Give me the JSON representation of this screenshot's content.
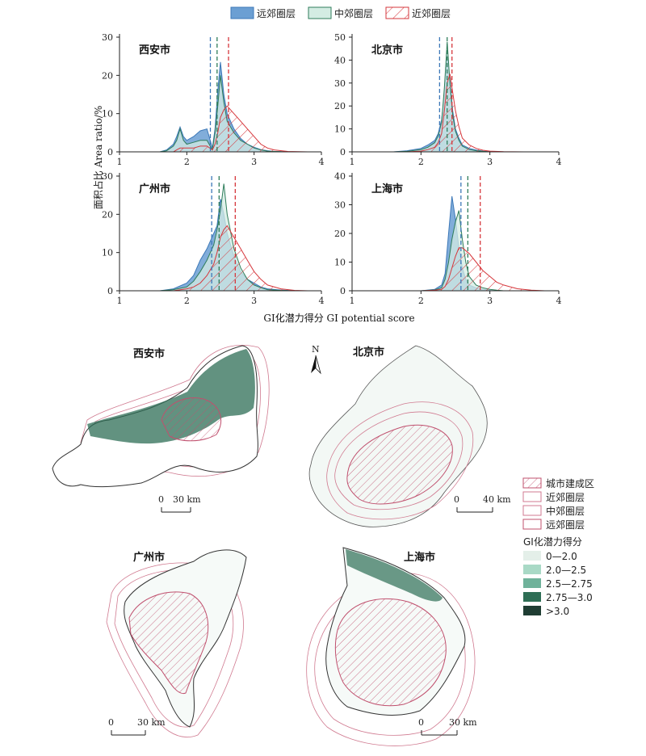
{
  "legend_top": [
    {
      "key": "outer",
      "label": "远郊圈层"
    },
    {
      "key": "middle",
      "label": "中郊圈层"
    },
    {
      "key": "near",
      "label": "近郊圈层"
    }
  ],
  "colors": {
    "outer_fill": "#6b9fd3",
    "outer_line": "#3d78b8",
    "middle_fill": "#d4ece3",
    "middle_line": "#2f7d5b",
    "near_line": "#d6373c",
    "class_0": "#e4efe9",
    "class_1": "#a9d9c6",
    "class_2": "#6fb29a",
    "class_3": "#2e6e55",
    "class_4": "#1f3d33",
    "built_hatch": "#c0506e",
    "ring_line": "#d07a90",
    "boundary": "#333333"
  },
  "axis": {
    "ylabel": "面积占比 Area ratio/%",
    "xlabel": "GI化潜力得分  GI potential score"
  },
  "chart_data": [
    {
      "type": "area",
      "title": "西安市",
      "x": [
        1.6,
        1.7,
        1.8,
        1.85,
        1.9,
        1.95,
        2.0,
        2.1,
        2.2,
        2.3,
        2.38,
        2.42,
        2.46,
        2.5,
        2.55,
        2.6,
        2.7,
        2.8,
        2.9,
        3.0,
        3.1,
        3.2,
        3.3,
        3.5,
        3.8
      ],
      "xlim": [
        1,
        4
      ],
      "ylim": [
        0,
        30
      ],
      "xticks": [
        1,
        2,
        3,
        4
      ],
      "yticks": [
        0,
        10,
        20,
        30
      ],
      "series": [
        {
          "name": "远郊圈层",
          "values": [
            0,
            0.5,
            2,
            4,
            6.5,
            4,
            3,
            4,
            5.5,
            6,
            1,
            6,
            16,
            23.5,
            15,
            10,
            6,
            3.5,
            2,
            1.2,
            0.6,
            0.3,
            0.1,
            0,
            0
          ]
        },
        {
          "name": "中郊圈层",
          "values": [
            0,
            0.3,
            1.5,
            3,
            6,
            3,
            2,
            2.5,
            3,
            3,
            0.5,
            5,
            12,
            20,
            13,
            8,
            5,
            3,
            2,
            1,
            0.5,
            0.2,
            0.1,
            0,
            0
          ]
        },
        {
          "name": "近郊圈层",
          "values": [
            0,
            0,
            0,
            0.5,
            1,
            1,
            1,
            1,
            1.5,
            1.5,
            0.5,
            2,
            5,
            9,
            11,
            12,
            10,
            8,
            6,
            4,
            2,
            1,
            0.5,
            0.1,
            0
          ]
        }
      ],
      "means": [
        2.35,
        2.45,
        2.62
      ]
    },
    {
      "type": "area",
      "title": "北京市",
      "x": [
        1.6,
        1.8,
        2.0,
        2.1,
        2.2,
        2.25,
        2.3,
        2.34,
        2.38,
        2.42,
        2.46,
        2.5,
        2.55,
        2.6,
        2.7,
        2.8,
        2.9,
        3.0,
        3.2,
        3.5,
        3.8
      ],
      "xlim": [
        1,
        4
      ],
      "ylim": [
        0,
        50
      ],
      "xticks": [
        1,
        2,
        3,
        4
      ],
      "yticks": [
        0,
        10,
        20,
        30,
        40,
        50
      ],
      "series": [
        {
          "name": "远郊圈层",
          "values": [
            0,
            0.5,
            1.5,
            3,
            5,
            8,
            14,
            25,
            42,
            31,
            18,
            10,
            6,
            3,
            1.5,
            0.8,
            0.3,
            0.1,
            0,
            0,
            0
          ]
        },
        {
          "name": "中郊圈层",
          "values": [
            0,
            0.2,
            1,
            2,
            4,
            7,
            13,
            28,
            48,
            30,
            16,
            9,
            5,
            2.5,
            1,
            0.5,
            0.2,
            0,
            0,
            0,
            0
          ]
        },
        {
          "name": "近郊圈层",
          "values": [
            0,
            0,
            0.3,
            1,
            2,
            4,
            8,
            18,
            30,
            34,
            26,
            18,
            11,
            6,
            3,
            1.5,
            0.7,
            0.3,
            0.1,
            0,
            0
          ]
        }
      ],
      "means": [
        2.27,
        2.38,
        2.45
      ]
    },
    {
      "type": "area",
      "title": "广州市",
      "x": [
        1.6,
        1.8,
        2.0,
        2.1,
        2.2,
        2.3,
        2.4,
        2.45,
        2.5,
        2.55,
        2.6,
        2.7,
        2.8,
        2.9,
        3.0,
        3.1,
        3.2,
        3.4,
        3.6,
        3.8
      ],
      "xlim": [
        1,
        4
      ],
      "ylim": [
        0,
        30
      ],
      "xticks": [
        1,
        2,
        3,
        4
      ],
      "yticks": [
        0,
        10,
        20,
        30
      ],
      "series": [
        {
          "name": "远郊圈层",
          "values": [
            0,
            0.5,
            2,
            4,
            8,
            11,
            15,
            17,
            24,
            20,
            15,
            9,
            5,
            3,
            2,
            1,
            0.5,
            0.2,
            0,
            0
          ]
        },
        {
          "name": "中郊圈层",
          "values": [
            0,
            0.3,
            1,
            2.5,
            5,
            8,
            12,
            16,
            21,
            28,
            20,
            11,
            6,
            3,
            1.5,
            0.8,
            0.3,
            0.1,
            0,
            0
          ]
        },
        {
          "name": "近郊圈层",
          "values": [
            0,
            0,
            0.5,
            1,
            2,
            4,
            7,
            10,
            14,
            16,
            17,
            14,
            11,
            8,
            5,
            3,
            1.5,
            0.5,
            0.1,
            0
          ]
        }
      ],
      "means": [
        2.37,
        2.48,
        2.72
      ]
    },
    {
      "type": "area",
      "title": "上海市",
      "x": [
        2.0,
        2.2,
        2.3,
        2.35,
        2.4,
        2.45,
        2.5,
        2.55,
        2.6,
        2.65,
        2.7,
        2.8,
        2.9,
        3.0,
        3.1,
        3.2,
        3.4,
        3.6,
        3.8
      ],
      "xlim": [
        1,
        4
      ],
      "ylim": [
        0,
        40
      ],
      "xticks": [
        1,
        2,
        3,
        4
      ],
      "yticks": [
        0,
        10,
        20,
        30,
        40
      ],
      "series": [
        {
          "name": "远郊圈层",
          "values": [
            0,
            0.5,
            2,
            6,
            20,
            33,
            25,
            15,
            8,
            4,
            2,
            1,
            0.5,
            0.2,
            0,
            0,
            0,
            0,
            0
          ]
        },
        {
          "name": "中郊圈层",
          "values": [
            0,
            0.3,
            1,
            4,
            10,
            18,
            24,
            28,
            18,
            10,
            5,
            2,
            1,
            0.5,
            0.2,
            0,
            0,
            0,
            0
          ]
        },
        {
          "name": "近郊圈层",
          "values": [
            0,
            0.2,
            0.5,
            1.5,
            4,
            8,
            12,
            15,
            15,
            14,
            13,
            10,
            7,
            5,
            3,
            2,
            0.7,
            0.2,
            0
          ]
        }
      ],
      "means": [
        2.58,
        2.68,
        2.86
      ]
    }
  ],
  "maps": [
    {
      "title": "西安市",
      "scale": "30 km"
    },
    {
      "title": "北京市",
      "scale": "40 km"
    },
    {
      "title": "广州市",
      "scale": "30 km"
    },
    {
      "title": "上海市",
      "scale": "30 km"
    }
  ],
  "scale_zero": "0",
  "north": "N",
  "map_legend": {
    "zones": [
      {
        "key": "built",
        "label": "城市建成区"
      },
      {
        "key": "near",
        "label": "近郊圈层"
      },
      {
        "key": "middle",
        "label": "中郊圈层"
      },
      {
        "key": "outer",
        "label": "远郊圈层"
      }
    ],
    "score_title": "GI化潜力得分",
    "classes": [
      "0—2.0",
      "2.0—2.5",
      "2.5—2.75",
      "2.75—3.0",
      ">3.0"
    ]
  }
}
